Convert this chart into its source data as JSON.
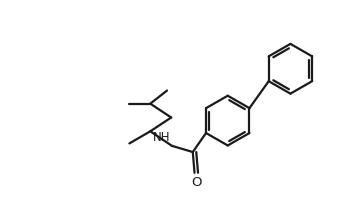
{
  "bg_color": "#ffffff",
  "line_color": "#1a1a1a",
  "line_width": 1.6,
  "font_size": 8.5,
  "label_NH": "NH",
  "label_O": "O",
  "fig_width": 3.51,
  "fig_height": 1.98,
  "dpi": 100,
  "xlim": [
    0,
    10
  ],
  "ylim": [
    0,
    5.65
  ]
}
